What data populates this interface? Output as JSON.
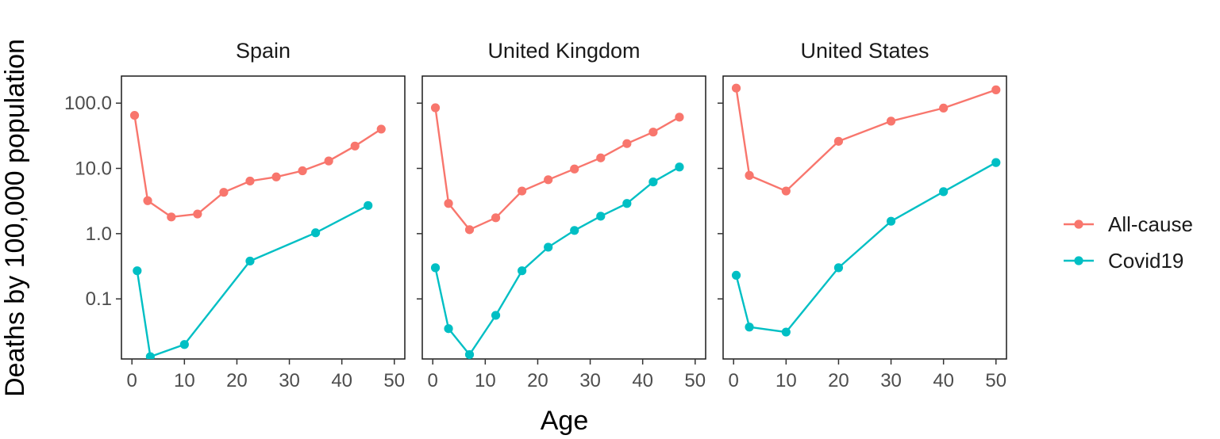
{
  "chart_data": {
    "type": "line",
    "facet_by": "country",
    "xlabel": "Age",
    "ylabel": "Deaths by 100,000 population",
    "y_scale": "log10",
    "x_ticks": [
      "0",
      "10",
      "20",
      "30",
      "40",
      "50"
    ],
    "y_ticks": [
      "0.1",
      "1.0",
      "10.0",
      "100.0"
    ],
    "xlim": [
      -2,
      52
    ],
    "ylim": [
      0.012,
      260
    ],
    "legend_position": "right",
    "legend": [
      "All-cause",
      "Covid19"
    ],
    "colors": {
      "All-cause": "#F8766D",
      "Covid19": "#00BFC4"
    },
    "panels": [
      {
        "title": "Spain",
        "series": [
          {
            "name": "All-cause",
            "x": [
              0.5,
              3,
              7.5,
              12.5,
              17.5,
              22.5,
              27.5,
              32.5,
              37.5,
              42.5,
              47.5
            ],
            "y": [
              65,
              3.2,
              1.8,
              2.0,
              4.3,
              6.4,
              7.4,
              9.2,
              13,
              22,
              40
            ]
          },
          {
            "name": "Covid19",
            "x": [
              1,
              3.5,
              10,
              22.5,
              35,
              45
            ],
            "y": [
              0.27,
              0.013,
              0.02,
              0.38,
              1.03,
              2.7
            ]
          }
        ]
      },
      {
        "title": "United Kingdom",
        "series": [
          {
            "name": "All-cause",
            "x": [
              0.5,
              3,
              7,
              12,
              17,
              22,
              27,
              32,
              37,
              42,
              47
            ],
            "y": [
              85,
              2.9,
              1.15,
              1.75,
              4.5,
              6.7,
              9.8,
              14.5,
              24,
              36,
              61
            ]
          },
          {
            "name": "Covid19",
            "x": [
              0.5,
              3,
              7,
              12,
              17,
              22,
              27,
              32,
              37,
              42,
              47
            ],
            "y": [
              0.3,
              0.035,
              0.014,
              0.056,
              0.27,
              0.62,
              1.12,
              1.85,
              2.9,
              6.2,
              10.5
            ]
          }
        ]
      },
      {
        "title": "United States",
        "series": [
          {
            "name": "All-cause",
            "x": [
              0.5,
              3,
              10,
              20,
              30,
              40,
              50
            ],
            "y": [
              170,
              7.8,
              4.5,
              26,
              53,
              84,
              160
            ]
          },
          {
            "name": "Covid19",
            "x": [
              0.5,
              3,
              10,
              20,
              30,
              40,
              50
            ],
            "y": [
              0.23,
              0.037,
              0.031,
              0.3,
              1.55,
              4.4,
              12.3
            ]
          }
        ]
      }
    ]
  }
}
